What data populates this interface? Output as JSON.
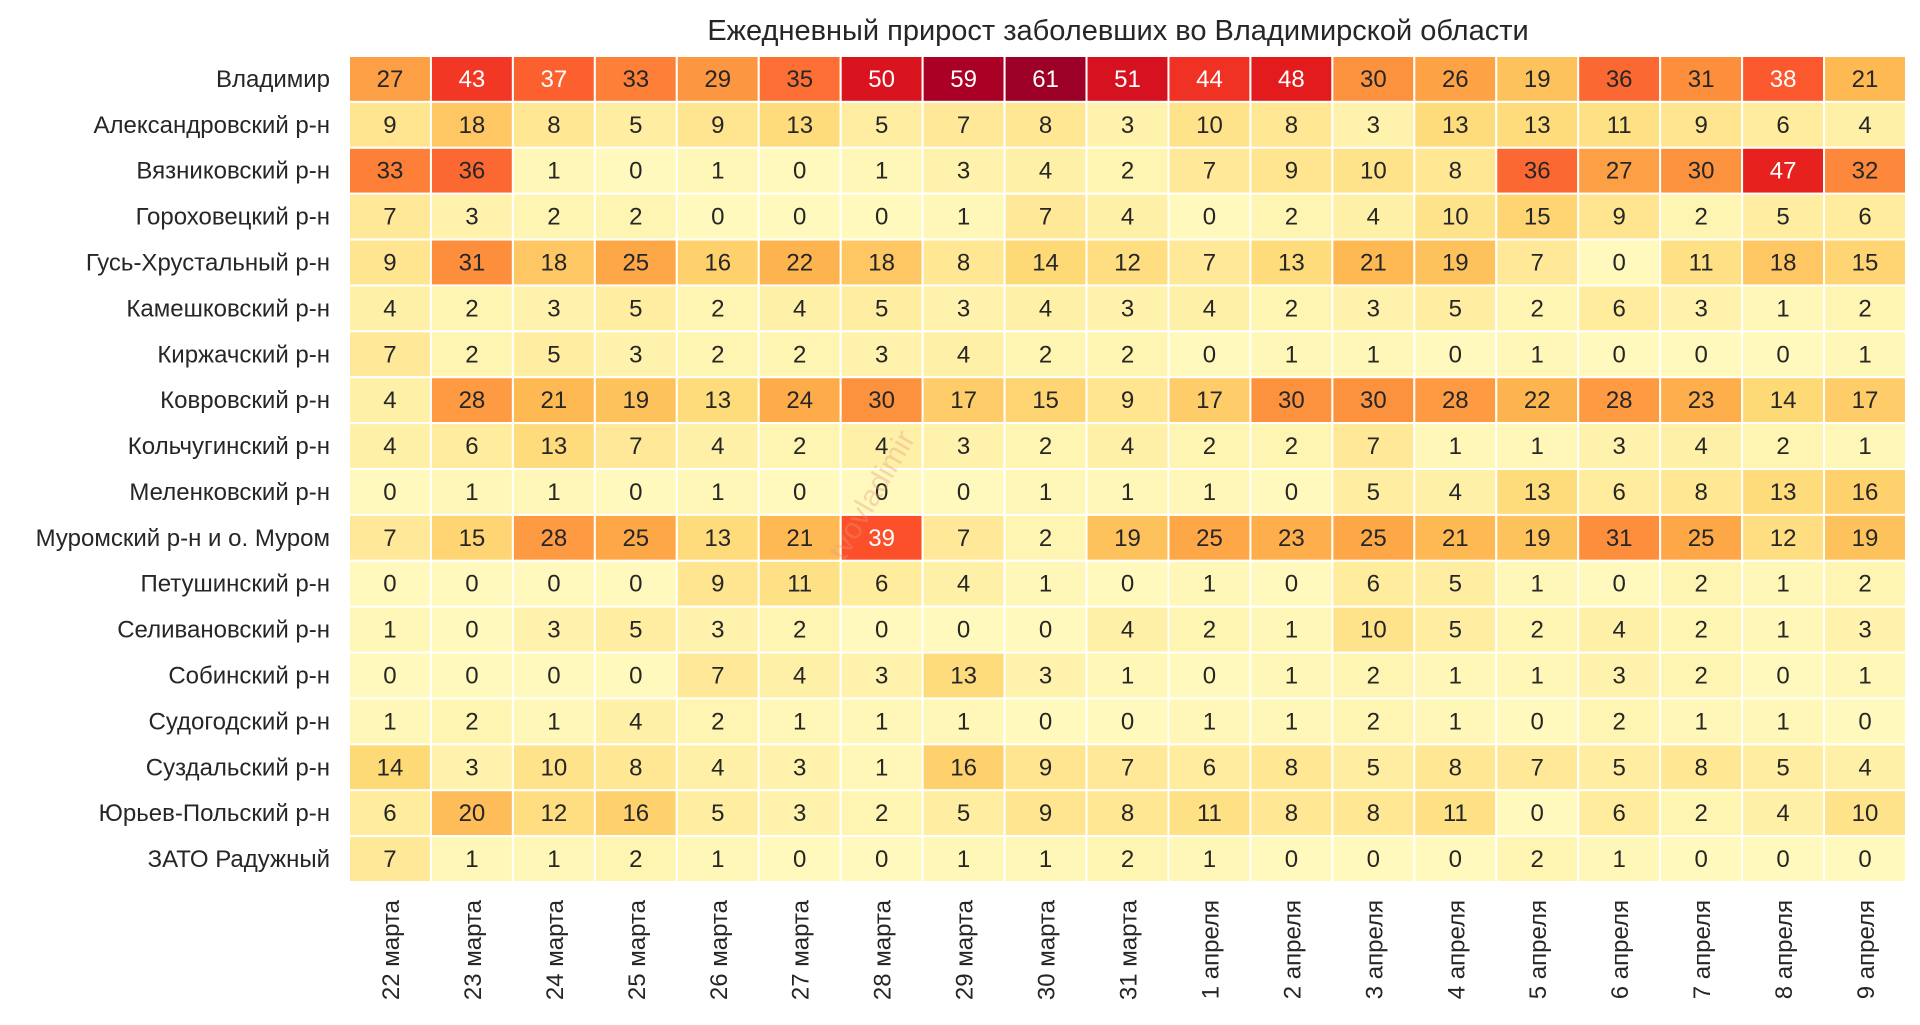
{
  "chart_data": {
    "type": "heatmap",
    "title": "Ежедневный прирост заболевших во Владимирской области",
    "xlabel": "",
    "ylabel": "",
    "colormap": "YlOrRd",
    "vmin": 0,
    "vmax": 61,
    "watermark": "tvovladimir",
    "columns": [
      "22 марта",
      "23 марта",
      "24 марта",
      "25 марта",
      "26 марта",
      "27 марта",
      "28 марта",
      "29 марта",
      "30 марта",
      "31 марта",
      "1 апреля",
      "2 апреля",
      "3 апреля",
      "4 апреля",
      "5 апреля",
      "6 апреля",
      "7 апреля",
      "8 апреля",
      "9 апреля"
    ],
    "rows": [
      "Владимир",
      "Александровский р-н",
      "Вязниковский р-н",
      "Гороховецкий р-н",
      "Гусь-Хрустальный р-н",
      "Камешковский р-н",
      "Киржачский р-н",
      "Ковровский р-н",
      "Кольчугинский р-н",
      "Меленковский р-н",
      "Муромский р-н и о. Муром",
      "Петушинский р-н",
      "Селивановский р-н",
      "Собинский р-н",
      "Судогодский р-н",
      "Суздальский р-н",
      "Юрьев-Польский р-н",
      "ЗАТО Радужный"
    ],
    "values": [
      [
        27,
        43,
        37,
        33,
        29,
        35,
        50,
        59,
        61,
        51,
        44,
        48,
        30,
        26,
        19,
        36,
        31,
        38,
        21
      ],
      [
        9,
        18,
        8,
        5,
        9,
        13,
        5,
        7,
        8,
        3,
        10,
        8,
        3,
        13,
        13,
        11,
        9,
        6,
        4
      ],
      [
        33,
        36,
        1,
        0,
        1,
        0,
        1,
        3,
        4,
        2,
        7,
        9,
        10,
        8,
        36,
        27,
        30,
        47,
        32
      ],
      [
        7,
        3,
        2,
        2,
        0,
        0,
        0,
        1,
        7,
        4,
        0,
        2,
        4,
        10,
        15,
        9,
        2,
        5,
        6
      ],
      [
        9,
        31,
        18,
        25,
        16,
        22,
        18,
        8,
        14,
        12,
        7,
        13,
        21,
        19,
        7,
        0,
        11,
        18,
        15
      ],
      [
        4,
        2,
        3,
        5,
        2,
        4,
        5,
        3,
        4,
        3,
        4,
        2,
        3,
        5,
        2,
        6,
        3,
        1,
        2
      ],
      [
        7,
        2,
        5,
        3,
        2,
        2,
        3,
        4,
        2,
        2,
        0,
        1,
        1,
        0,
        1,
        0,
        0,
        0,
        1
      ],
      [
        4,
        28,
        21,
        19,
        13,
        24,
        30,
        17,
        15,
        9,
        17,
        30,
        30,
        28,
        22,
        28,
        23,
        14,
        17
      ],
      [
        4,
        6,
        13,
        7,
        4,
        2,
        4,
        3,
        2,
        4,
        2,
        2,
        7,
        1,
        1,
        3,
        4,
        2,
        1
      ],
      [
        0,
        1,
        1,
        0,
        1,
        0,
        0,
        0,
        1,
        1,
        1,
        0,
        5,
        4,
        13,
        6,
        8,
        13,
        16
      ],
      [
        7,
        15,
        28,
        25,
        13,
        21,
        39,
        7,
        2,
        19,
        25,
        23,
        25,
        21,
        19,
        31,
        25,
        12,
        19
      ],
      [
        0,
        0,
        0,
        0,
        9,
        11,
        6,
        4,
        1,
        0,
        1,
        0,
        6,
        5,
        1,
        0,
        2,
        1,
        2
      ],
      [
        1,
        0,
        3,
        5,
        3,
        2,
        0,
        0,
        0,
        4,
        2,
        1,
        10,
        5,
        2,
        4,
        2,
        1,
        3
      ],
      [
        0,
        0,
        0,
        0,
        7,
        4,
        3,
        13,
        3,
        1,
        0,
        1,
        2,
        1,
        1,
        3,
        2,
        0,
        1
      ],
      [
        1,
        2,
        1,
        4,
        2,
        1,
        1,
        1,
        0,
        0,
        1,
        1,
        2,
        1,
        0,
        2,
        1,
        1,
        0
      ],
      [
        14,
        3,
        10,
        8,
        4,
        3,
        1,
        16,
        9,
        7,
        6,
        8,
        5,
        8,
        7,
        5,
        8,
        5,
        4
      ],
      [
        6,
        20,
        12,
        16,
        5,
        3,
        2,
        5,
        9,
        8,
        11,
        8,
        8,
        11,
        0,
        6,
        2,
        4,
        10
      ],
      [
        7,
        1,
        1,
        2,
        1,
        0,
        0,
        1,
        1,
        2,
        1,
        0,
        0,
        0,
        2,
        1,
        0,
        0,
        0
      ]
    ]
  }
}
